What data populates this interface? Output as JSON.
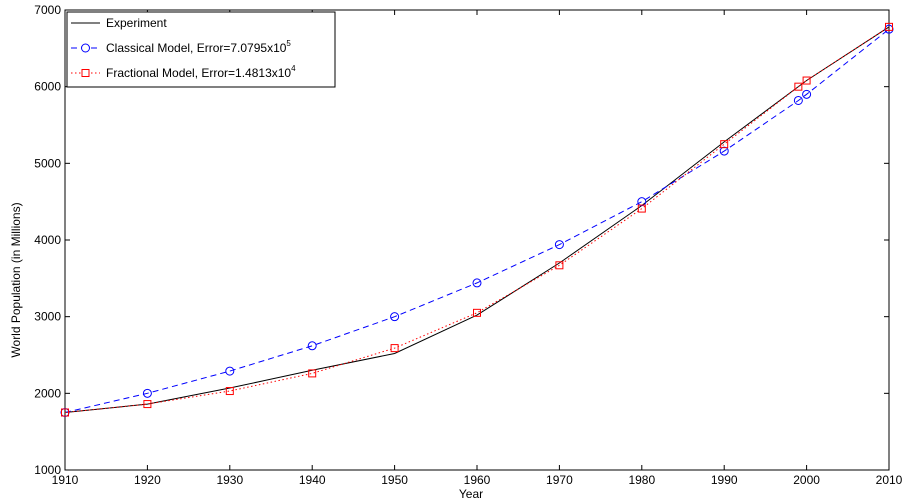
{
  "chart_data": {
    "type": "line",
    "xlabel": "Year",
    "ylabel": "World Population (in Millions)",
    "xlim": [
      1910,
      2010
    ],
    "ylim": [
      1000,
      7000
    ],
    "xticks": [
      1910,
      1920,
      1930,
      1940,
      1950,
      1960,
      1970,
      1980,
      1990,
      2000,
      2010
    ],
    "yticks": [
      1000,
      2000,
      3000,
      4000,
      5000,
      6000,
      7000
    ],
    "grid": false,
    "legend_position": "top-left",
    "series": [
      {
        "name": "Experiment",
        "color": "#000000",
        "line_style": "solid",
        "marker": "none",
        "x": [
          1910,
          1920,
          1930,
          1940,
          1950,
          1960,
          1970,
          1980,
          1990,
          2000,
          2010
        ],
        "y": [
          1750,
          1860,
          2070,
          2300,
          2520,
          3020,
          3700,
          4450,
          5280,
          6080,
          6780
        ]
      },
      {
        "name": "Classical Model, Error=7.0795x10",
        "name_exponent": "5",
        "color": "#0000ff",
        "line_style": "dashed",
        "marker": "circle",
        "x": [
          1910,
          1920,
          1930,
          1940,
          1950,
          1960,
          1970,
          1980,
          1990,
          1999,
          2000,
          2010
        ],
        "y": [
          1750,
          2000,
          2290,
          2620,
          3000,
          3440,
          3940,
          4500,
          5160,
          5820,
          5900,
          6750
        ]
      },
      {
        "name": "Fractional Model, Error=1.4813x10",
        "name_exponent": "4",
        "color": "#ff0000",
        "line_style": "dotted",
        "marker": "square",
        "x": [
          1910,
          1920,
          1930,
          1940,
          1950,
          1960,
          1970,
          1980,
          1990,
          1999,
          2000,
          2010
        ],
        "y": [
          1750,
          1860,
          2030,
          2260,
          2590,
          3050,
          3670,
          4410,
          5250,
          6000,
          6080,
          6780
        ]
      }
    ]
  }
}
